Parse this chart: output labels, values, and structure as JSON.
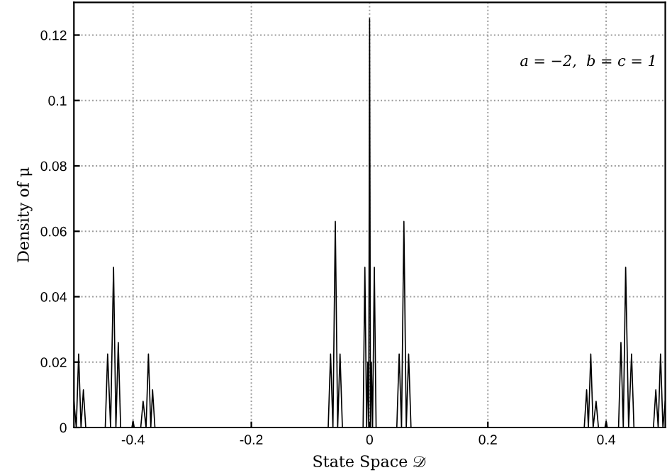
{
  "chart_data": {
    "type": "line",
    "xlabel": "State Space 𝒟",
    "ylabel": "Density of μ",
    "annotations": [
      "a = −2,  b = c = 1"
    ],
    "series": [
      {
        "color": "#000000",
        "x": [
          -0.5,
          -0.496,
          -0.492,
          -0.488,
          -0.484,
          -0.48,
          -0.447,
          -0.443,
          -0.438,
          -0.433,
          -0.429,
          -0.425,
          -0.421,
          -0.402,
          -0.4,
          -0.398,
          -0.387,
          -0.383,
          -0.378,
          -0.374,
          -0.37,
          -0.367,
          -0.363,
          -0.07,
          -0.066,
          -0.062,
          -0.058,
          -0.054,
          -0.05,
          -0.046,
          -0.011,
          -0.008,
          -0.005,
          -0.003,
          -0.0015,
          0,
          0.0015,
          0.003,
          0.005,
          0.008,
          0.011,
          0.046,
          0.05,
          0.054,
          0.058,
          0.062,
          0.066,
          0.07,
          0.363,
          0.367,
          0.37,
          0.374,
          0.378,
          0.383,
          0.387,
          0.398,
          0.4,
          0.402,
          0.421,
          0.425,
          0.429,
          0.433,
          0.438,
          0.443,
          0.447,
          0.48,
          0.484,
          0.488,
          0.492,
          0.496,
          0.5
        ],
        "values": [
          0.008,
          0,
          0.0225,
          0,
          0.0115,
          0,
          0,
          0.0225,
          0,
          0.049,
          0,
          0.026,
          0,
          0,
          0.002,
          0,
          0,
          0.008,
          0,
          0.0225,
          0,
          0.0115,
          0,
          0,
          0.0225,
          0,
          0.063,
          0,
          0.0225,
          0,
          0,
          0.049,
          0,
          0.02,
          0,
          0.125,
          0,
          0.02,
          0,
          0.049,
          0,
          0,
          0.0225,
          0,
          0.063,
          0,
          0.0225,
          0,
          0,
          0.0115,
          0,
          0.0225,
          0,
          0.008,
          0,
          0,
          0.002,
          0,
          0,
          0.026,
          0,
          0.049,
          0,
          0.0225,
          0,
          0,
          0.0115,
          0,
          0.0225,
          0,
          0.008
        ]
      }
    ],
    "xlim": [
      -0.5,
      0.5
    ],
    "xticks": [
      -0.4,
      -0.2,
      0,
      0.2,
      0.4
    ],
    "ylim": [
      0,
      0.13
    ],
    "yticks": [
      0,
      0.02,
      0.04,
      0.06,
      0.08,
      0.1,
      0.12
    ],
    "grid": true,
    "legend": false,
    "marker": "none",
    "line_style": "solid"
  }
}
